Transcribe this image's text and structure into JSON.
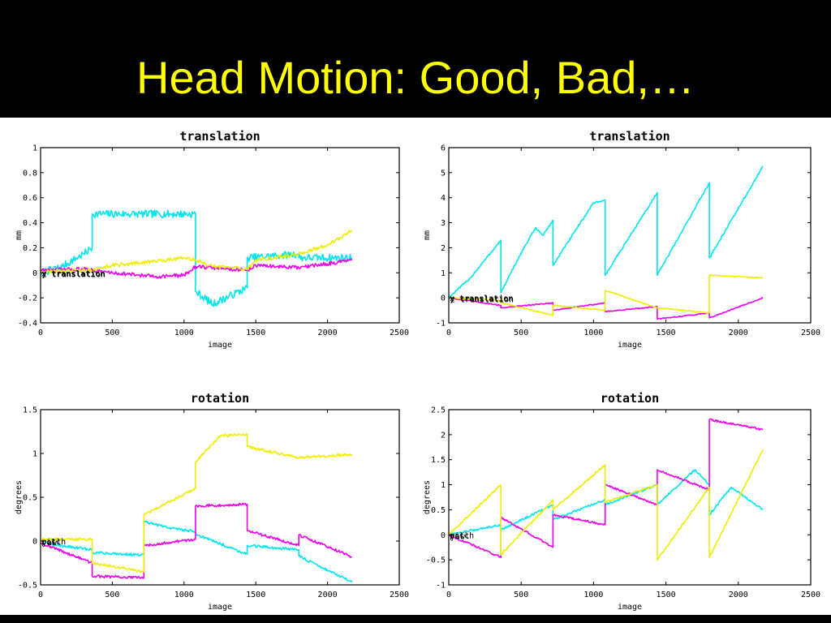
{
  "slide": {
    "title": "Head Motion: Good, Bad,…"
  },
  "colors": {
    "x": "#00e5ee",
    "y": "#ee00ee",
    "z": "#eeee00"
  },
  "chart_data": [
    {
      "type": "line",
      "title": "translation",
      "xlabel": "image",
      "ylabel": "mm",
      "xlim": [
        0,
        2500
      ],
      "ylim": [
        -0.4,
        1
      ],
      "xticks": [
        0,
        500,
        1000,
        1500,
        2000,
        2500
      ],
      "yticks": [
        -0.4,
        -0.2,
        0,
        0.2,
        0.4,
        0.6,
        0.8,
        1
      ],
      "ytick_labels": [
        "-0.4",
        "-0.2",
        "0",
        "0.2",
        "0.4",
        "0.6",
        "0.8",
        "1"
      ],
      "legend_labels": [
        "x translation",
        "y translation",
        "z translation"
      ],
      "grid": false,
      "series": [
        {
          "color": "#00e5ee",
          "noise": 0.03,
          "x": [
            0,
            150,
            300,
            360,
            360,
            700,
            1080,
            1080,
            1200,
            1440,
            1440,
            1800,
            1800,
            2170
          ],
          "y": [
            0.0,
            0.05,
            0.15,
            0.2,
            0.47,
            0.47,
            0.47,
            -0.15,
            -0.25,
            -0.12,
            0.12,
            0.15,
            0.12,
            0.12
          ]
        },
        {
          "color": "#ee00ee",
          "noise": 0.015,
          "x": [
            0,
            300,
            500,
            800,
            1000,
            1080,
            1200,
            1440,
            1500,
            1800,
            2170
          ],
          "y": [
            0.02,
            0.03,
            0.0,
            -0.03,
            -0.02,
            0.05,
            0.04,
            0.02,
            0.06,
            0.04,
            0.1
          ]
        },
        {
          "color": "#eeee00",
          "noise": 0.015,
          "x": [
            0,
            350,
            500,
            700,
            1000,
            1080,
            1200,
            1440,
            1500,
            1800,
            2000,
            2170
          ],
          "y": [
            0.01,
            0.02,
            0.06,
            0.08,
            0.12,
            0.1,
            0.05,
            0.03,
            0.1,
            0.15,
            0.22,
            0.34
          ]
        }
      ]
    },
    {
      "type": "line",
      "title": "translation",
      "xlabel": "image",
      "ylabel": "mm",
      "xlim": [
        0,
        2500
      ],
      "ylim": [
        -1,
        6
      ],
      "xticks": [
        0,
        500,
        1000,
        1500,
        2000,
        2500
      ],
      "yticks": [
        -1,
        0,
        1,
        2,
        3,
        4,
        5,
        6
      ],
      "ytick_labels": [
        "-1",
        "0",
        "1",
        "2",
        "3",
        "4",
        "5",
        "6"
      ],
      "legend_labels": [
        "x translation",
        "y translation",
        "z translation"
      ],
      "grid": false,
      "series": [
        {
          "color": "#00e5ee",
          "noise": 0.04,
          "x": [
            0,
            150,
            360,
            360,
            500,
            600,
            650,
            720,
            720,
            1000,
            1080,
            1080,
            1440,
            1440,
            1800,
            1800,
            2170
          ],
          "y": [
            0.0,
            0.8,
            2.3,
            0.2,
            1.8,
            2.8,
            2.5,
            3.1,
            1.3,
            3.8,
            3.9,
            0.9,
            4.2,
            0.9,
            4.6,
            1.6,
            5.25
          ]
        },
        {
          "color": "#ee00ee",
          "noise": 0.02,
          "x": [
            0,
            360,
            360,
            720,
            720,
            1080,
            1080,
            1440,
            1440,
            1800,
            1800,
            2170
          ],
          "y": [
            0.0,
            -0.3,
            -0.4,
            -0.2,
            -0.5,
            -0.2,
            -0.55,
            -0.35,
            -0.85,
            -0.6,
            -0.8,
            0.0
          ]
        },
        {
          "color": "#eeee00",
          "noise": 0.02,
          "x": [
            0,
            360,
            360,
            720,
            720,
            1080,
            1080,
            1440,
            1440,
            1800,
            1800,
            2170
          ],
          "y": [
            0.0,
            -0.1,
            -0.2,
            -0.7,
            -0.3,
            -0.5,
            0.3,
            -0.4,
            -0.4,
            -0.6,
            0.9,
            0.8
          ]
        }
      ]
    },
    {
      "type": "line",
      "title": "rotation",
      "xlabel": "image",
      "ylabel": "degrees",
      "xlim": [
        0,
        2500
      ],
      "ylim": [
        -0.5,
        1.5
      ],
      "xticks": [
        0,
        500,
        1000,
        1500,
        2000,
        2500
      ],
      "yticks": [
        -0.5,
        0,
        0.5,
        1,
        1.5
      ],
      "ytick_labels": [
        "-0.5",
        "0",
        "0.5",
        "1",
        "1.5"
      ],
      "legend_labels": [
        "pitch",
        "roll",
        "yaw"
      ],
      "grid": false,
      "series": [
        {
          "color": "#00e5ee",
          "noise": 0.015,
          "x": [
            0,
            360,
            360,
            720,
            720,
            900,
            1080,
            1080,
            1440,
            1440,
            1800,
            1800,
            2170
          ],
          "y": [
            -0.02,
            -0.1,
            -0.13,
            -0.16,
            0.22,
            0.15,
            0.11,
            0.08,
            -0.15,
            -0.05,
            -0.1,
            -0.17,
            -0.47
          ]
        },
        {
          "color": "#ee00ee",
          "noise": 0.015,
          "x": [
            0,
            360,
            360,
            720,
            720,
            1080,
            1080,
            1440,
            1440,
            1800,
            1800,
            2170
          ],
          "y": [
            -0.02,
            -0.25,
            -0.4,
            -0.42,
            -0.05,
            0.02,
            0.4,
            0.42,
            0.12,
            -0.05,
            0.07,
            -0.18
          ]
        },
        {
          "color": "#eeee00",
          "noise": 0.015,
          "x": [
            0,
            360,
            360,
            720,
            720,
            1080,
            1080,
            1250,
            1440,
            1440,
            1800,
            2170
          ],
          "y": [
            0.02,
            0.02,
            -0.25,
            -0.35,
            0.3,
            0.6,
            0.9,
            1.2,
            1.22,
            1.08,
            0.95,
            0.99
          ]
        }
      ]
    },
    {
      "type": "line",
      "title": "rotation",
      "xlabel": "image",
      "ylabel": "degrees",
      "xlim": [
        0,
        2500
      ],
      "ylim": [
        -1,
        2.5
      ],
      "xticks": [
        0,
        500,
        1000,
        1500,
        2000,
        2500
      ],
      "yticks": [
        -1,
        -0.5,
        0,
        0.5,
        1,
        1.5,
        2,
        2.5
      ],
      "ytick_labels": [
        "-1",
        "-0.5",
        "0",
        "0.5",
        "1",
        "1.5",
        "2",
        "2.5"
      ],
      "legend_labels": [
        "pitch",
        "roll",
        "yaw"
      ],
      "grid": false,
      "series": [
        {
          "color": "#00e5ee",
          "noise": 0.02,
          "x": [
            0,
            360,
            360,
            720,
            720,
            1080,
            1080,
            1440,
            1440,
            1700,
            1800,
            1800,
            1950,
            2170
          ],
          "y": [
            0.0,
            0.2,
            0.1,
            0.6,
            0.3,
            0.7,
            0.6,
            1.0,
            0.6,
            1.3,
            1.0,
            0.4,
            0.95,
            0.5
          ]
        },
        {
          "color": "#ee00ee",
          "noise": 0.02,
          "x": [
            0,
            360,
            360,
            720,
            720,
            1080,
            1080,
            1440,
            1440,
            1800,
            1800,
            2170
          ],
          "y": [
            0.0,
            -0.45,
            0.35,
            -0.25,
            0.4,
            0.2,
            1.0,
            0.6,
            1.3,
            0.9,
            2.3,
            2.1
          ]
        },
        {
          "color": "#eeee00",
          "noise": 0.02,
          "x": [
            0,
            360,
            360,
            720,
            720,
            1080,
            1080,
            1440,
            1440,
            1800,
            1800,
            2170
          ],
          "y": [
            0.0,
            1.0,
            -0.4,
            0.7,
            0.5,
            1.4,
            0.65,
            1.0,
            -0.5,
            0.95,
            -0.45,
            1.7
          ]
        }
      ]
    }
  ]
}
